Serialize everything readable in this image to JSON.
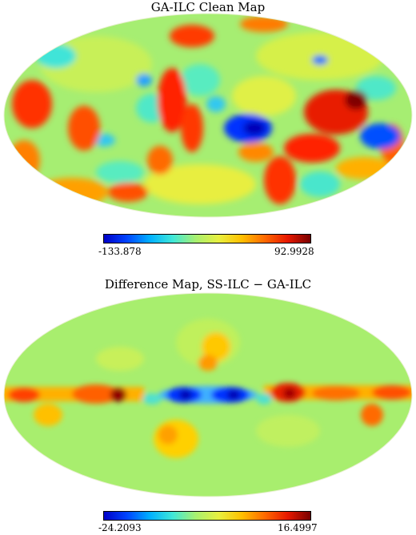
{
  "maps": [
    {
      "title": "GA-ILC Clean Map",
      "colorbar": {
        "min_label": "-133.878",
        "max_label": "92.9928"
      }
    },
    {
      "title": "Difference Map, SS-ILC − GA-ILC",
      "colorbar": {
        "min_label": "-24.2093",
        "max_label": "16.4997"
      }
    }
  ],
  "colormap": [
    "#0000c8",
    "#0044ff",
    "#00b0ff",
    "#40e8d8",
    "#a8f070",
    "#e8f040",
    "#ffc000",
    "#ff6a00",
    "#e81800",
    "#780000"
  ]
}
